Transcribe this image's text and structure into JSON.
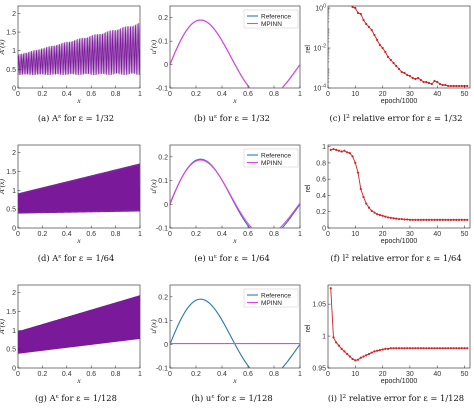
{
  "colors": {
    "reference": "#2a78b0",
    "mpinn": "#e642e6",
    "coefficient": "#7a1a9a",
    "error": "#d22222"
  },
  "chart_data": [
    {
      "id": "a32",
      "type": "line",
      "pattern": "oscillation",
      "eps_den": 32,
      "xlabel": "x",
      "ylabel": "A^ε(x)",
      "xlim": [
        0,
        1
      ],
      "ylim": [
        0,
        2.2
      ],
      "xticks": [
        "0",
        "0.2",
        "0.4",
        "0.6",
        "0.8",
        "1"
      ],
      "yticks": [
        "0",
        "0.5",
        "1",
        "1.5",
        "2"
      ],
      "yticks_values": [
        0,
        0.5,
        1,
        1.5,
        2
      ],
      "envelope": {
        "low": [
          0.35,
          0.35
        ],
        "high": [
          0.9,
          1.75
        ]
      },
      "caption": "(a) A^ε for ε = 1/32"
    },
    {
      "id": "u32",
      "type": "line",
      "pattern": "solution",
      "xlabel": "x",
      "ylabel": "u^ε(x)",
      "xlim": [
        0,
        1
      ],
      "ylim": [
        -0.1,
        0.25
      ],
      "xticks": [
        "0",
        "0.2",
        "0.4",
        "0.6",
        "0.8",
        "1"
      ],
      "yticks": [
        "-0.1",
        "0",
        "0.1",
        "0.2"
      ],
      "yticks_values": [
        -0.1,
        0,
        0.1,
        0.2
      ],
      "series": [
        {
          "name": "Reference",
          "amp": 0.22,
          "offset": 0
        },
        {
          "name": "MPINN",
          "amp": 0.22,
          "offset": 0
        }
      ],
      "caption": "(b) u^ε for ε = 1/32"
    },
    {
      "id": "e32",
      "type": "line",
      "pattern": "error",
      "yscale": "log",
      "xlabel": "epoch/1000",
      "ylabel": "rel",
      "xlim": [
        0,
        52
      ],
      "ylim": [
        -4,
        0.1
      ],
      "xticks": [
        "0",
        "10",
        "20",
        "30",
        "40",
        "50"
      ],
      "xticks_values": [
        0,
        10,
        20,
        30,
        40,
        50
      ],
      "yticks": [
        "10^0",
        "10^-2",
        "10^-4"
      ],
      "yticks_values": [
        0,
        -2,
        -4
      ],
      "x": [
        1,
        2,
        3,
        4,
        5,
        6,
        7,
        8,
        9,
        10,
        11,
        12,
        13,
        14,
        15,
        16,
        17,
        18,
        19,
        20,
        21,
        22,
        23,
        24,
        25,
        26,
        27,
        28,
        29,
        30,
        31,
        32,
        33,
        34,
        35,
        36,
        37,
        38,
        39,
        40,
        41,
        42,
        43,
        44,
        45,
        46,
        47,
        48,
        49,
        50,
        51
      ],
      "values": [
        0.95,
        0.95,
        0.95,
        0.95,
        0.95,
        0.6,
        0.9,
        0.4,
        0.05,
        0.0,
        -0.25,
        -0.3,
        -0.6,
        -0.8,
        -0.95,
        -1.1,
        -1.35,
        -1.6,
        -1.85,
        -2.0,
        -2.2,
        -2.45,
        -2.6,
        -2.75,
        -2.9,
        -3.05,
        -3.2,
        -3.25,
        -3.35,
        -3.4,
        -3.5,
        -3.55,
        -3.5,
        -3.6,
        -3.7,
        -3.7,
        -3.75,
        -3.8,
        -3.65,
        -3.7,
        -3.8,
        -3.85,
        -3.85,
        -3.9,
        -3.9,
        -3.9,
        -3.9,
        -3.9,
        -3.9,
        -3.9,
        -3.9
      ],
      "caption": "(c) l^2 relative error for ε = 1/32"
    },
    {
      "id": "a64",
      "type": "line",
      "pattern": "oscillation",
      "eps_den": 64,
      "xlabel": "x",
      "ylabel": "A^ε(x)",
      "xlim": [
        0,
        1
      ],
      "ylim": [
        0,
        2.2
      ],
      "xticks": [
        "0",
        "0.2",
        "0.4",
        "0.6",
        "0.8",
        "1"
      ],
      "yticks": [
        "0",
        "0.5",
        "1",
        "1.5",
        "2"
      ],
      "yticks_values": [
        0,
        0.5,
        1,
        1.5,
        2
      ],
      "envelope": {
        "low": [
          0.35,
          0.35
        ],
        "high": [
          0.95,
          1.8
        ]
      },
      "caption": "(d) A^ε for ε = 1/64"
    },
    {
      "id": "u64",
      "type": "line",
      "pattern": "solution",
      "xlabel": "x",
      "ylabel": "u^ε(x)",
      "xlim": [
        0,
        1
      ],
      "ylim": [
        -0.1,
        0.25
      ],
      "xticks": [
        "0",
        "0.2",
        "0.4",
        "0.6",
        "0.8",
        "1"
      ],
      "yticks": [
        "-0.1",
        "0",
        "0.1",
        "0.2"
      ],
      "yticks_values": [
        -0.1,
        0,
        0.1,
        0.2
      ],
      "series": [
        {
          "name": "Reference",
          "amp": 0.22,
          "offset": 0
        },
        {
          "name": "MPINN",
          "amp": 0.21,
          "offset": 0.005
        }
      ],
      "caption": "(e) u^ε for ε = 1/64"
    },
    {
      "id": "e64",
      "type": "line",
      "pattern": "error",
      "yscale": "linear",
      "xlabel": "epoch/1000",
      "ylabel": "rel",
      "xlim": [
        0,
        52
      ],
      "ylim": [
        0,
        1.02
      ],
      "xticks": [
        "0",
        "10",
        "20",
        "30",
        "40",
        "50"
      ],
      "xticks_values": [
        0,
        10,
        20,
        30,
        40,
        50
      ],
      "yticks": [
        "0",
        "0.2",
        "0.4",
        "0.6",
        "0.8",
        "1"
      ],
      "yticks_values": [
        0,
        0.2,
        0.4,
        0.6,
        0.8,
        1
      ],
      "x": [
        1,
        2,
        3,
        4,
        5,
        6,
        7,
        8,
        9,
        10,
        11,
        12,
        13,
        14,
        15,
        16,
        17,
        18,
        19,
        20,
        21,
        22,
        23,
        24,
        25,
        26,
        27,
        28,
        29,
        30,
        31,
        32,
        33,
        34,
        35,
        36,
        37,
        38,
        39,
        40,
        41,
        42,
        43,
        44,
        45,
        46,
        47,
        48,
        49,
        50,
        51
      ],
      "values": [
        0.96,
        0.97,
        0.96,
        0.95,
        0.94,
        0.95,
        0.93,
        0.92,
        0.88,
        0.8,
        0.68,
        0.48,
        0.38,
        0.3,
        0.25,
        0.21,
        0.19,
        0.17,
        0.16,
        0.15,
        0.14,
        0.13,
        0.125,
        0.12,
        0.115,
        0.11,
        0.11,
        0.105,
        0.105,
        0.1,
        0.1,
        0.1,
        0.1,
        0.1,
        0.1,
        0.1,
        0.1,
        0.1,
        0.1,
        0.1,
        0.1,
        0.1,
        0.1,
        0.1,
        0.1,
        0.1,
        0.1,
        0.1,
        0.1,
        0.1,
        0.1
      ],
      "caption": "(f) l^2 relative error for ε = 1/64"
    },
    {
      "id": "a128",
      "type": "line",
      "pattern": "oscillation",
      "eps_den": 128,
      "xlabel": "x",
      "ylabel": "A^ε(x)",
      "xlim": [
        0,
        1
      ],
      "ylim": [
        0,
        2.2
      ],
      "xticks": [
        "0",
        "0.2",
        "0.4",
        "0.6",
        "0.8",
        "1"
      ],
      "yticks": [
        "0",
        "0.5",
        "1",
        "1.5",
        "2"
      ],
      "yticks_values": [
        0,
        0.5,
        1,
        1.5,
        2
      ],
      "envelope": {
        "low": [
          0.35,
          0.7
        ],
        "high": [
          1.0,
          2.0
        ]
      },
      "caption": "(g) A^ε for ε = 1/128"
    },
    {
      "id": "u128",
      "type": "line",
      "pattern": "solution",
      "xlabel": "x",
      "ylabel": "u^ε(x)",
      "xlim": [
        0,
        1
      ],
      "ylim": [
        -0.1,
        0.25
      ],
      "xticks": [
        "0",
        "0.2",
        "0.4",
        "0.6",
        "0.8",
        "1"
      ],
      "yticks": [
        "-0.1",
        "0",
        "0.1",
        "0.2"
      ],
      "yticks_values": [
        -0.1,
        0,
        0.1,
        0.2
      ],
      "series": [
        {
          "name": "Reference",
          "amp": 0.22,
          "offset": 0
        },
        {
          "name": "MPINN",
          "amp": 0.0,
          "offset": 0.003
        }
      ],
      "caption": "(h) u^ε for ε = 1/128"
    },
    {
      "id": "e128",
      "type": "line",
      "pattern": "error",
      "yscale": "linear",
      "xlabel": "epoch/1000",
      "ylabel": "rel",
      "xlim": [
        0,
        52
      ],
      "ylim": [
        0.95,
        1.08
      ],
      "xticks": [
        "0",
        "10",
        "20",
        "30",
        "40",
        "50"
      ],
      "xticks_values": [
        0,
        10,
        20,
        30,
        40,
        50
      ],
      "yticks": [
        "0.95",
        "1",
        "1.05"
      ],
      "yticks_values": [
        0.95,
        1,
        1.05
      ],
      "x": [
        1,
        2,
        3,
        4,
        5,
        6,
        7,
        8,
        9,
        10,
        11,
        12,
        13,
        14,
        15,
        16,
        17,
        18,
        19,
        20,
        21,
        22,
        23,
        24,
        25,
        26,
        27,
        28,
        29,
        30,
        31,
        32,
        33,
        34,
        35,
        36,
        37,
        38,
        39,
        40,
        41,
        42,
        43,
        44,
        45,
        46,
        47,
        48,
        49,
        50,
        51
      ],
      "values": [
        1.075,
        0.998,
        0.99,
        0.985,
        0.98,
        0.976,
        0.972,
        0.968,
        0.964,
        0.962,
        0.963,
        0.966,
        0.968,
        0.97,
        0.972,
        0.974,
        0.976,
        0.977,
        0.978,
        0.979,
        0.98,
        0.98,
        0.981,
        0.981,
        0.981,
        0.981,
        0.981,
        0.981,
        0.981,
        0.981,
        0.981,
        0.981,
        0.981,
        0.981,
        0.981,
        0.981,
        0.981,
        0.981,
        0.981,
        0.981,
        0.981,
        0.981,
        0.981,
        0.981,
        0.981,
        0.981,
        0.981,
        0.981,
        0.981,
        0.981,
        0.981
      ],
      "caption": "(i) l^2 relative error for ε = 1/128"
    }
  ]
}
